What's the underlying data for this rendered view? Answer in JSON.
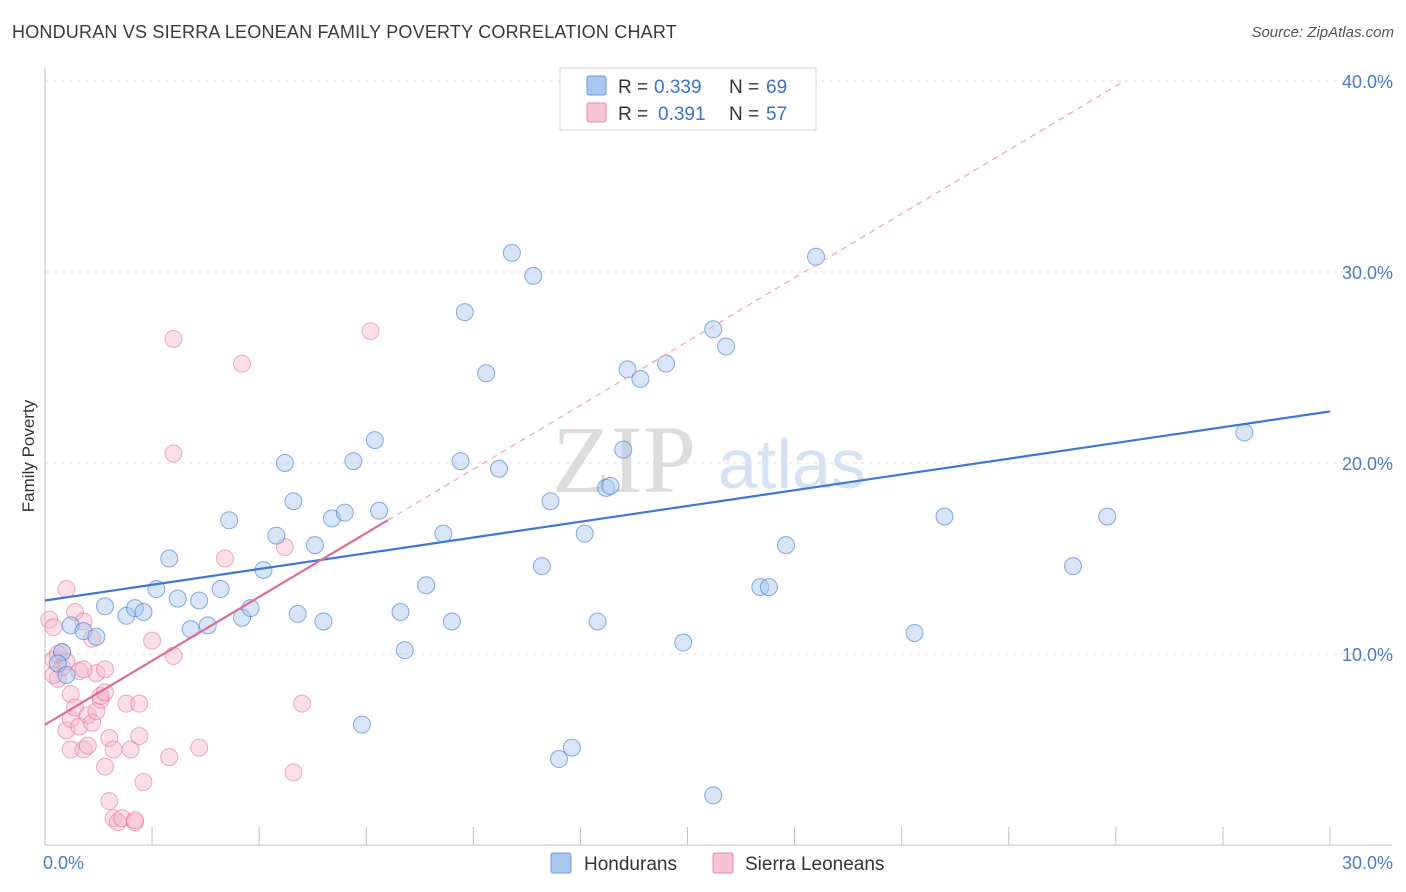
{
  "title": "HONDURAN VS SIERRA LEONEAN FAMILY POVERTY CORRELATION CHART",
  "source": "Source: ZipAtlas.com",
  "watermark": {
    "zip": "ZIP",
    "atlas": "atlas"
  },
  "legend": {
    "series": [
      {
        "r_label": "R =",
        "r_value": "0.339",
        "n_label": "N =",
        "n_value": "69"
      },
      {
        "r_label": "R =",
        "r_value": "0.391",
        "n_label": "N =",
        "n_value": "57"
      }
    ]
  },
  "bottom_legend": [
    "Hondurans",
    "Sierra Leoneans"
  ],
  "chart_data": {
    "type": "scatter",
    "title": "HONDURAN VS SIERRA LEONEAN FAMILY POVERTY CORRELATION CHART",
    "xlabel": "",
    "ylabel": "Family Poverty",
    "xlim": [
      0,
      30
    ],
    "ylim": [
      0,
      42
    ],
    "x_tick_labels": [
      "0.0%",
      "30.0%"
    ],
    "y_ticks": [
      10,
      20,
      30,
      40
    ],
    "y_tick_labels": [
      "10.0%",
      "20.0%",
      "30.0%",
      "40.0%"
    ],
    "grid": true,
    "legend_position": "top-center",
    "colors": {
      "hondurans": "#3b78d4",
      "hondurans_fill": "#a9c6ee",
      "sierra": "#e06b93",
      "sierra_fill": "#f5b8cb"
    },
    "series": [
      {
        "name": "Hondurans",
        "trend": {
          "x": [
            0,
            30
          ],
          "y": [
            12.8,
            22.7
          ],
          "style": "solid"
        },
        "points": [
          [
            0.4,
            10.1
          ],
          [
            0.6,
            11.5
          ],
          [
            0.9,
            11.2
          ],
          [
            1.2,
            10.9
          ],
          [
            1.4,
            12.5
          ],
          [
            1.9,
            12.0
          ],
          [
            2.1,
            12.4
          ],
          [
            2.3,
            12.2
          ],
          [
            2.6,
            13.4
          ],
          [
            2.9,
            15.0
          ],
          [
            3.1,
            12.9
          ],
          [
            3.4,
            11.3
          ],
          [
            3.6,
            12.8
          ],
          [
            3.8,
            11.5
          ],
          [
            4.1,
            13.4
          ],
          [
            4.3,
            17.0
          ],
          [
            4.6,
            11.9
          ],
          [
            4.8,
            12.4
          ],
          [
            5.1,
            14.4
          ],
          [
            5.4,
            16.2
          ],
          [
            5.6,
            20.0
          ],
          [
            5.8,
            18.0
          ],
          [
            5.9,
            12.1
          ],
          [
            6.3,
            15.7
          ],
          [
            6.5,
            11.7
          ],
          [
            6.7,
            17.1
          ],
          [
            7.0,
            17.4
          ],
          [
            7.2,
            20.1
          ],
          [
            7.4,
            6.3
          ],
          [
            7.7,
            21.2
          ],
          [
            7.8,
            17.5
          ],
          [
            8.3,
            12.2
          ],
          [
            8.4,
            10.2
          ],
          [
            8.9,
            13.6
          ],
          [
            9.3,
            16.3
          ],
          [
            9.5,
            11.7
          ],
          [
            9.7,
            20.1
          ],
          [
            9.8,
            27.9
          ],
          [
            10.3,
            24.7
          ],
          [
            10.6,
            19.7
          ],
          [
            10.9,
            31.0
          ],
          [
            11.4,
            29.8
          ],
          [
            11.6,
            14.6
          ],
          [
            11.8,
            18.0
          ],
          [
            12.0,
            4.5
          ],
          [
            12.3,
            5.1
          ],
          [
            12.6,
            16.3
          ],
          [
            12.9,
            11.7
          ],
          [
            13.1,
            18.7
          ],
          [
            13.2,
            18.8
          ],
          [
            13.5,
            20.7
          ],
          [
            13.6,
            24.9
          ],
          [
            13.9,
            24.4
          ],
          [
            14.5,
            25.2
          ],
          [
            14.9,
            10.6
          ],
          [
            15.6,
            2.6
          ],
          [
            15.6,
            27.0
          ],
          [
            15.9,
            26.1
          ],
          [
            16.7,
            13.5
          ],
          [
            16.9,
            13.5
          ],
          [
            17.3,
            15.7
          ],
          [
            18.0,
            30.8
          ],
          [
            20.3,
            11.1
          ],
          [
            21.0,
            17.2
          ],
          [
            24.0,
            14.6
          ],
          [
            24.8,
            17.2
          ],
          [
            28.0,
            21.6
          ],
          [
            0.3,
            9.5
          ],
          [
            0.5,
            8.9
          ]
        ]
      },
      {
        "name": "Sierra Leoneans",
        "trend": {
          "x": [
            0,
            8.0
          ],
          "y": [
            6.3,
            17.0
          ],
          "style": "solid",
          "extended": {
            "x": [
              8.0,
              25.2
            ],
            "y": [
              17.0,
              40.0
            ],
            "style": "dashed"
          }
        },
        "points": [
          [
            0.1,
            11.8
          ],
          [
            0.2,
            11.4
          ],
          [
            0.2,
            9.7
          ],
          [
            0.3,
            8.7
          ],
          [
            0.4,
            9.3
          ],
          [
            0.4,
            10.1
          ],
          [
            0.5,
            6.0
          ],
          [
            0.5,
            9.6
          ],
          [
            0.6,
            7.9
          ],
          [
            0.6,
            6.6
          ],
          [
            0.6,
            5.0
          ],
          [
            0.7,
            7.2
          ],
          [
            0.7,
            12.2
          ],
          [
            0.8,
            9.1
          ],
          [
            0.8,
            6.2
          ],
          [
            0.9,
            11.7
          ],
          [
            0.9,
            5.0
          ],
          [
            1.0,
            5.2
          ],
          [
            1.0,
            6.8
          ],
          [
            1.1,
            6.4
          ],
          [
            1.1,
            10.8
          ],
          [
            1.2,
            9.0
          ],
          [
            1.2,
            7.0
          ],
          [
            1.3,
            7.6
          ],
          [
            1.3,
            7.8
          ],
          [
            1.4,
            9.2
          ],
          [
            1.4,
            4.1
          ],
          [
            1.5,
            2.3
          ],
          [
            1.5,
            5.6
          ],
          [
            1.6,
            5.0
          ],
          [
            1.6,
            1.4
          ],
          [
            1.7,
            1.2
          ],
          [
            1.8,
            1.4
          ],
          [
            1.9,
            7.4
          ],
          [
            2.0,
            5.0
          ],
          [
            2.1,
            1.2
          ],
          [
            2.1,
            1.3
          ],
          [
            2.2,
            7.4
          ],
          [
            2.2,
            5.7
          ],
          [
            2.3,
            3.3
          ],
          [
            2.5,
            10.7
          ],
          [
            2.9,
            4.6
          ],
          [
            3.0,
            26.5
          ],
          [
            3.0,
            20.5
          ],
          [
            3.0,
            9.9
          ],
          [
            3.6,
            5.1
          ],
          [
            4.2,
            15.0
          ],
          [
            4.6,
            25.2
          ],
          [
            5.6,
            15.6
          ],
          [
            5.8,
            3.8
          ],
          [
            6.0,
            7.4
          ],
          [
            7.6,
            26.9
          ],
          [
            0.5,
            13.4
          ],
          [
            0.3,
            10.0
          ],
          [
            0.9,
            9.2
          ],
          [
            1.4,
            8.0
          ],
          [
            0.2,
            8.9
          ]
        ]
      }
    ]
  }
}
